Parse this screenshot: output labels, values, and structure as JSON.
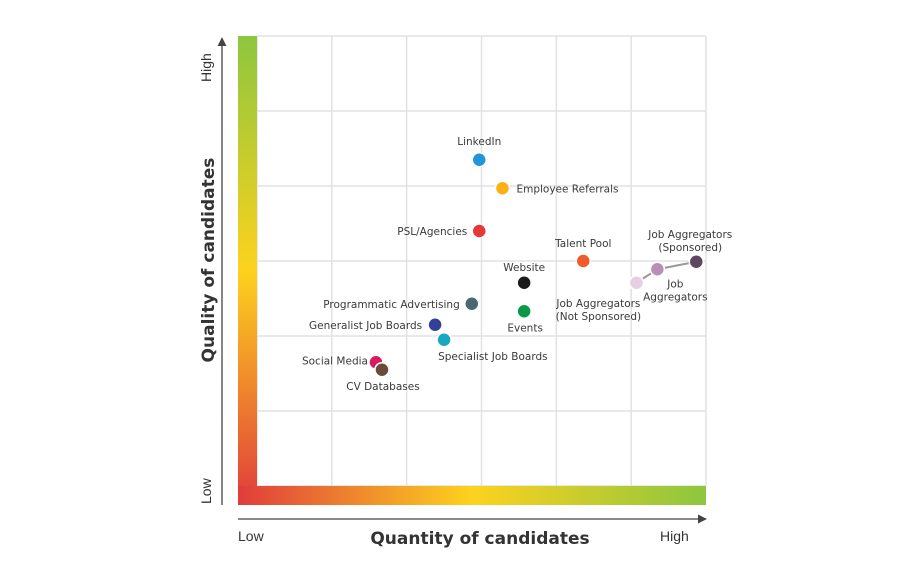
{
  "chart_data": {
    "type": "scatter",
    "title": "",
    "xlabel": "Quantity of candidates",
    "ylabel": "Quality of candidates",
    "x_ticks": {
      "low": "Low",
      "high": "High"
    },
    "y_ticks": {
      "low": "Low",
      "high": "High"
    },
    "xlim": [
      0,
      6
    ],
    "ylim": [
      0,
      6
    ],
    "grid": true,
    "axis_gradient_colors": [
      "#e03c3c",
      "#fdd21e",
      "#8dc63f"
    ],
    "points": [
      {
        "label": "LinkedIn",
        "x": 2.97,
        "y": 4.35,
        "color": "#2196d6"
      },
      {
        "label": "Employee Referrals",
        "x": 3.28,
        "y": 3.97,
        "color": "#fbb116"
      },
      {
        "label": "PSL/Agencies",
        "x": 2.97,
        "y": 3.4,
        "color": "#e53935"
      },
      {
        "label": "Talent Pool",
        "x": 4.36,
        "y": 3.0,
        "color": "#f15a29"
      },
      {
        "label": "Job Aggregators (Sponsored)",
        "label_lines": [
          "Job Aggregators",
          "(Sponsored)"
        ],
        "x": 5.87,
        "y": 2.99,
        "color": "#5e4660"
      },
      {
        "label": "Job Aggregators",
        "label_lines": [
          "Job",
          "Aggregators"
        ],
        "x": 5.35,
        "y": 2.89,
        "color": "#b98fb8"
      },
      {
        "label": "Job Aggregators (Not Sponsored)",
        "label_lines": [
          "Job Aggregators",
          "(Not Sponsored)"
        ],
        "x": 5.07,
        "y": 2.71,
        "color": "#e6cfe3"
      },
      {
        "label": "Website",
        "x": 3.57,
        "y": 2.71,
        "color": "#1b1b1b"
      },
      {
        "label": "Programmatic Advertising",
        "x": 2.87,
        "y": 2.43,
        "color": "#4a6872"
      },
      {
        "label": "Events",
        "x": 3.57,
        "y": 2.33,
        "color": "#0a9a47"
      },
      {
        "label": "Generalist Job Boards",
        "x": 2.38,
        "y": 2.15,
        "color": "#33409a"
      },
      {
        "label": "Specialist Job Boards",
        "x": 2.5,
        "y": 1.95,
        "color": "#17a9c2"
      },
      {
        "label": "Social Media",
        "x": 1.59,
        "y": 1.65,
        "color": "#d81b60"
      },
      {
        "label": "CV Databases",
        "x": 1.67,
        "y": 1.55,
        "color": "#6b4a3a"
      }
    ],
    "connected_group": [
      "Job Aggregators (Not Sponsored)",
      "Job Aggregators",
      "Job Aggregators (Sponsored)"
    ]
  }
}
